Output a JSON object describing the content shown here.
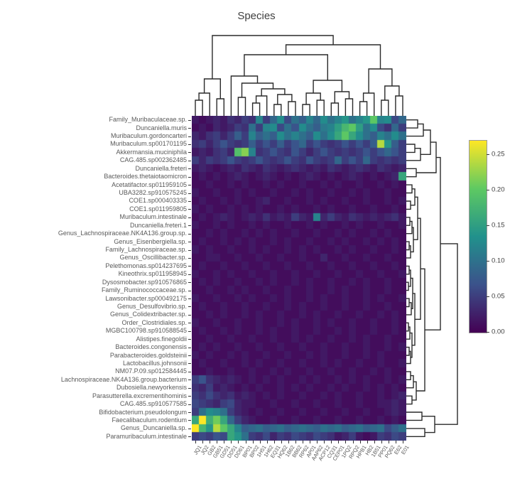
{
  "title": "Species",
  "chart_data": {
    "type": "heatmap",
    "title": "Species",
    "xlabel": "",
    "ylabel": "",
    "colormap": "viridis",
    "vmin": 0.0,
    "vmax": 0.27,
    "colorbar_ticks": [
      "0.25",
      "0.20",
      "0.15",
      "0.10",
      "0.05",
      "0.00"
    ],
    "colorbar_tick_values": [
      0.25,
      0.2,
      0.15,
      0.1,
      0.05,
      0.0
    ],
    "row_dendrogram": true,
    "column_dendrogram": true,
    "rows": [
      "Family_Muribaculaceae.sp.",
      "Duncaniella.muris",
      "Muribaculum.gordoncarteri",
      "Muribaculum.sp001701195",
      "Akkermansia.muciniphila",
      "CAG.485.sp002362485",
      "Duncaniella.freteri",
      "Bacteroides.thetaiotaomicron",
      "Acetatifactor.sp011959105",
      "UBA3282.sp910575245",
      "COE1.sp000403335",
      "COE1.sp011959805",
      "Muribaculum.intestinale",
      "Duncaniella.freteri.1",
      "Genus_Lachnospiraceae.NK4A136.group.sp.",
      "Genus_Eisenbergiella.sp.",
      "Family_Lachnospiraceae.sp.",
      "Genus_Oscillibacter.sp.",
      "Pelethomonas.sp014237695",
      "Kineothrix.sp011958945",
      "Dysosmobacter.sp910576865",
      "Family_Ruminococcaceae.sp.",
      "Lawsonibacter.sp000492175",
      "Genus_Desulfovibrio.sp.",
      "Genus_Colidextribacter.sp.",
      "Order_Clostridiales.sp.",
      "MGBC100798.sp910588545",
      "Alistipes.finegoldii",
      "Bacteroides.congonensis",
      "Parabacteroides.goldsteinii",
      "Lactobacillus.johnsonii",
      "NM07.P.09.sp012584445",
      "Lachnospiraceae.NK4A136.group.bacterium",
      "Dubosiella.newyorkensis",
      "Parasutterella.excrementihominis",
      "CAG.485.sp910577585",
      "Bifidobacterium.pseudolongum",
      "Faecalibaculum.rodentium",
      "Genus_Duncaniella.sp.",
      "Paramuribaculum.intestinale"
    ],
    "columns": [
      "JQ1",
      "JQ2",
      "GB2",
      "GB51",
      "GD51",
      "DD51",
      "DD61",
      "BP01",
      "BP02",
      "1H51",
      "1H62",
      "EQ31",
      "HQ62",
      "1B62",
      "BB62",
      "RP62",
      "AP01",
      "AAP62",
      "ACP12",
      "CQ31",
      "CEP01",
      "1PQ2",
      "RPQ2",
      "HPB1",
      "HB2",
      "1B51",
      "PP01",
      "PQ62",
      "E62",
      "E01"
    ],
    "matrix": [
      [
        0.02,
        0.01,
        0.02,
        0.03,
        0.02,
        0.04,
        0.03,
        0.05,
        0.04,
        0.12,
        0.05,
        0.09,
        0.13,
        0.06,
        0.1,
        0.08,
        0.12,
        0.09,
        0.13,
        0.1,
        0.12,
        0.14,
        0.1,
        0.12,
        0.14,
        0.2,
        0.12,
        0.13,
        0.06,
        0.09
      ],
      [
        0.01,
        0.02,
        0.01,
        0.03,
        0.02,
        0.03,
        0.05,
        0.04,
        0.1,
        0.05,
        0.12,
        0.13,
        0.06,
        0.1,
        0.07,
        0.13,
        0.1,
        0.08,
        0.11,
        0.12,
        0.15,
        0.18,
        0.2,
        0.15,
        0.1,
        0.13,
        0.06,
        0.04,
        0.09,
        0.05
      ],
      [
        0.03,
        0.02,
        0.04,
        0.05,
        0.03,
        0.05,
        0.08,
        0.05,
        0.12,
        0.08,
        0.1,
        0.08,
        0.13,
        0.1,
        0.12,
        0.1,
        0.08,
        0.13,
        0.1,
        0.13,
        0.16,
        0.2,
        0.16,
        0.13,
        0.1,
        0.08,
        0.12,
        0.1,
        0.13,
        0.1
      ],
      [
        0.04,
        0.05,
        0.03,
        0.05,
        0.07,
        0.05,
        0.04,
        0.05,
        0.08,
        0.05,
        0.07,
        0.05,
        0.08,
        0.05,
        0.07,
        0.09,
        0.05,
        0.07,
        0.05,
        0.04,
        0.05,
        0.07,
        0.05,
        0.07,
        0.05,
        0.08,
        0.24,
        0.14,
        0.08,
        0.05
      ],
      [
        0.02,
        0.03,
        0.02,
        0.04,
        0.05,
        0.03,
        0.19,
        0.22,
        0.12,
        0.04,
        0.05,
        0.07,
        0.05,
        0.04,
        0.07,
        0.05,
        0.03,
        0.05,
        0.07,
        0.05,
        0.04,
        0.05,
        0.04,
        0.05,
        0.07,
        0.05,
        0.07,
        0.09,
        0.07,
        0.05
      ],
      [
        0.05,
        0.03,
        0.05,
        0.04,
        0.05,
        0.07,
        0.05,
        0.04,
        0.05,
        0.07,
        0.05,
        0.04,
        0.05,
        0.07,
        0.05,
        0.04,
        0.07,
        0.05,
        0.04,
        0.05,
        0.09,
        0.05,
        0.07,
        0.05,
        0.09,
        0.05,
        0.04,
        0.05,
        0.04,
        0.05
      ],
      [
        0.02,
        0.03,
        0.02,
        0.01,
        0.02,
        0.03,
        0.02,
        0.04,
        0.03,
        0.02,
        0.04,
        0.03,
        0.02,
        0.03,
        0.04,
        0.03,
        0.02,
        0.03,
        0.02,
        0.04,
        0.03,
        0.02,
        0.03,
        0.04,
        0.03,
        0.02,
        0.04,
        0.03,
        0.02,
        0.03
      ],
      [
        0.01,
        0.02,
        0.01,
        0.02,
        0.01,
        0.02,
        0.03,
        0.02,
        0.01,
        0.02,
        0.03,
        0.02,
        0.01,
        0.02,
        0.01,
        0.02,
        0.03,
        0.02,
        0.01,
        0.02,
        0.01,
        0.02,
        0.03,
        0.02,
        0.01,
        0.02,
        0.01,
        0.02,
        0.03,
        0.16
      ],
      [
        0.01,
        0.01,
        0.02,
        0.01,
        0.01,
        0.02,
        0.01,
        0.02,
        0.01,
        0.01,
        0.02,
        0.01,
        0.02,
        0.01,
        0.01,
        0.02,
        0.01,
        0.01,
        0.02,
        0.01,
        0.02,
        0.01,
        0.01,
        0.02,
        0.01,
        0.01,
        0.02,
        0.01,
        0.02,
        0.01
      ],
      [
        0.02,
        0.01,
        0.01,
        0.02,
        0.01,
        0.01,
        0.02,
        0.01,
        0.02,
        0.01,
        0.01,
        0.02,
        0.01,
        0.01,
        0.02,
        0.01,
        0.02,
        0.01,
        0.01,
        0.02,
        0.01,
        0.01,
        0.02,
        0.01,
        0.02,
        0.01,
        0.01,
        0.02,
        0.01,
        0.01
      ],
      [
        0.01,
        0.02,
        0.01,
        0.01,
        0.02,
        0.01,
        0.02,
        0.01,
        0.01,
        0.02,
        0.03,
        0.01,
        0.01,
        0.02,
        0.01,
        0.01,
        0.02,
        0.01,
        0.02,
        0.01,
        0.01,
        0.02,
        0.01,
        0.01,
        0.02,
        0.01,
        0.01,
        0.02,
        0.01,
        0.02
      ],
      [
        0.02,
        0.01,
        0.02,
        0.01,
        0.01,
        0.02,
        0.01,
        0.02,
        0.01,
        0.02,
        0.01,
        0.01,
        0.02,
        0.01,
        0.02,
        0.01,
        0.01,
        0.02,
        0.01,
        0.02,
        0.01,
        0.01,
        0.02,
        0.01,
        0.01,
        0.02,
        0.01,
        0.01,
        0.02,
        0.01
      ],
      [
        0.01,
        0.02,
        0.01,
        0.02,
        0.03,
        0.02,
        0.01,
        0.02,
        0.03,
        0.02,
        0.04,
        0.02,
        0.03,
        0.02,
        0.05,
        0.03,
        0.02,
        0.12,
        0.03,
        0.05,
        0.03,
        0.02,
        0.04,
        0.03,
        0.02,
        0.03,
        0.02,
        0.03,
        0.04,
        0.02
      ],
      [
        0.02,
        0.01,
        0.01,
        0.02,
        0.01,
        0.02,
        0.01,
        0.01,
        0.02,
        0.01,
        0.02,
        0.01,
        0.01,
        0.02,
        0.01,
        0.01,
        0.02,
        0.01,
        0.02,
        0.01,
        0.01,
        0.02,
        0.01,
        0.02,
        0.01,
        0.01,
        0.02,
        0.01,
        0.01,
        0.02
      ],
      [
        0.01,
        0.01,
        0.02,
        0.01,
        0.02,
        0.01,
        0.01,
        0.02,
        0.01,
        0.02,
        0.01,
        0.02,
        0.01,
        0.01,
        0.02,
        0.01,
        0.01,
        0.02,
        0.01,
        0.01,
        0.02,
        0.01,
        0.02,
        0.01,
        0.01,
        0.02,
        0.01,
        0.02,
        0.01,
        0.01
      ],
      [
        0.01,
        0.02,
        0.01,
        0.01,
        0.02,
        0.01,
        0.02,
        0.01,
        0.02,
        0.01,
        0.01,
        0.02,
        0.01,
        0.02,
        0.01,
        0.01,
        0.02,
        0.01,
        0.01,
        0.02,
        0.01,
        0.02,
        0.01,
        0.01,
        0.02,
        0.01,
        0.02,
        0.01,
        0.02,
        0.01
      ],
      [
        0.02,
        0.01,
        0.02,
        0.01,
        0.01,
        0.02,
        0.01,
        0.01,
        0.02,
        0.01,
        0.02,
        0.01,
        0.01,
        0.02,
        0.01,
        0.02,
        0.01,
        0.02,
        0.01,
        0.01,
        0.02,
        0.01,
        0.02,
        0.01,
        0.01,
        0.02,
        0.01,
        0.01,
        0.02,
        0.01
      ],
      [
        0.01,
        0.01,
        0.02,
        0.02,
        0.01,
        0.01,
        0.02,
        0.01,
        0.01,
        0.02,
        0.01,
        0.01,
        0.02,
        0.01,
        0.01,
        0.02,
        0.01,
        0.01,
        0.03,
        0.01,
        0.01,
        0.02,
        0.01,
        0.01,
        0.02,
        0.01,
        0.01,
        0.02,
        0.01,
        0.01
      ],
      [
        0.01,
        0.02,
        0.01,
        0.01,
        0.02,
        0.01,
        0.01,
        0.02,
        0.01,
        0.01,
        0.02,
        0.01,
        0.01,
        0.02,
        0.01,
        0.01,
        0.02,
        0.01,
        0.01,
        0.02,
        0.01,
        0.01,
        0.02,
        0.01,
        0.01,
        0.02,
        0.01,
        0.01,
        0.02,
        0.01
      ],
      [
        0.02,
        0.01,
        0.01,
        0.02,
        0.01,
        0.02,
        0.01,
        0.01,
        0.02,
        0.01,
        0.01,
        0.02,
        0.01,
        0.01,
        0.02,
        0.01,
        0.01,
        0.02,
        0.01,
        0.01,
        0.02,
        0.01,
        0.01,
        0.02,
        0.01,
        0.01,
        0.02,
        0.01,
        0.01,
        0.02
      ],
      [
        0.01,
        0.02,
        0.01,
        0.02,
        0.01,
        0.01,
        0.02,
        0.01,
        0.01,
        0.02,
        0.01,
        0.02,
        0.01,
        0.01,
        0.02,
        0.01,
        0.02,
        0.01,
        0.01,
        0.02,
        0.01,
        0.01,
        0.02,
        0.01,
        0.02,
        0.01,
        0.01,
        0.02,
        0.01,
        0.01
      ],
      [
        0.01,
        0.01,
        0.02,
        0.01,
        0.01,
        0.02,
        0.01,
        0.02,
        0.01,
        0.01,
        0.02,
        0.01,
        0.01,
        0.02,
        0.01,
        0.01,
        0.02,
        0.01,
        0.01,
        0.02,
        0.01,
        0.02,
        0.01,
        0.01,
        0.02,
        0.01,
        0.01,
        0.02,
        0.01,
        0.01
      ],
      [
        0.02,
        0.01,
        0.01,
        0.02,
        0.01,
        0.01,
        0.02,
        0.01,
        0.02,
        0.01,
        0.01,
        0.02,
        0.01,
        0.02,
        0.01,
        0.01,
        0.02,
        0.01,
        0.02,
        0.01,
        0.01,
        0.02,
        0.01,
        0.01,
        0.02,
        0.01,
        0.02,
        0.01,
        0.01,
        0.02
      ],
      [
        0.01,
        0.02,
        0.01,
        0.01,
        0.02,
        0.01,
        0.01,
        0.02,
        0.01,
        0.01,
        0.02,
        0.01,
        0.01,
        0.02,
        0.01,
        0.02,
        0.01,
        0.01,
        0.02,
        0.01,
        0.01,
        0.02,
        0.01,
        0.01,
        0.02,
        0.01,
        0.01,
        0.02,
        0.01,
        0.01
      ],
      [
        0.01,
        0.01,
        0.02,
        0.01,
        0.02,
        0.01,
        0.01,
        0.02,
        0.01,
        0.02,
        0.01,
        0.01,
        0.02,
        0.01,
        0.01,
        0.02,
        0.01,
        0.02,
        0.01,
        0.01,
        0.02,
        0.01,
        0.01,
        0.02,
        0.01,
        0.01,
        0.02,
        0.01,
        0.02,
        0.01
      ],
      [
        0.02,
        0.01,
        0.01,
        0.02,
        0.01,
        0.01,
        0.02,
        0.01,
        0.01,
        0.02,
        0.01,
        0.01,
        0.02,
        0.01,
        0.02,
        0.01,
        0.01,
        0.02,
        0.01,
        0.02,
        0.01,
        0.01,
        0.02,
        0.01,
        0.01,
        0.02,
        0.01,
        0.01,
        0.02,
        0.01
      ],
      [
        0.01,
        0.02,
        0.01,
        0.01,
        0.02,
        0.01,
        0.02,
        0.01,
        0.01,
        0.02,
        0.01,
        0.02,
        0.01,
        0.01,
        0.02,
        0.01,
        0.01,
        0.02,
        0.01,
        0.01,
        0.02,
        0.01,
        0.02,
        0.01,
        0.01,
        0.02,
        0.01,
        0.01,
        0.02,
        0.01
      ],
      [
        0.01,
        0.01,
        0.02,
        0.01,
        0.01,
        0.02,
        0.01,
        0.01,
        0.02,
        0.01,
        0.01,
        0.02,
        0.01,
        0.01,
        0.02,
        0.01,
        0.02,
        0.01,
        0.01,
        0.02,
        0.01,
        0.01,
        0.02,
        0.01,
        0.02,
        0.01,
        0.01,
        0.02,
        0.01,
        0.01
      ],
      [
        0.01,
        0.02,
        0.01,
        0.02,
        0.01,
        0.01,
        0.02,
        0.01,
        0.01,
        0.02,
        0.01,
        0.01,
        0.02,
        0.01,
        0.01,
        0.02,
        0.01,
        0.01,
        0.02,
        0.01,
        0.01,
        0.02,
        0.01,
        0.01,
        0.02,
        0.01,
        0.01,
        0.02,
        0.01,
        0.02
      ],
      [
        0.02,
        0.01,
        0.02,
        0.01,
        0.01,
        0.02,
        0.01,
        0.02,
        0.01,
        0.01,
        0.02,
        0.01,
        0.01,
        0.02,
        0.01,
        0.01,
        0.02,
        0.01,
        0.02,
        0.01,
        0.01,
        0.02,
        0.01,
        0.01,
        0.02,
        0.01,
        0.02,
        0.01,
        0.01,
        0.01
      ],
      [
        0.01,
        0.02,
        0.01,
        0.01,
        0.02,
        0.01,
        0.01,
        0.02,
        0.01,
        0.02,
        0.01,
        0.01,
        0.02,
        0.01,
        0.01,
        0.02,
        0.01,
        0.01,
        0.02,
        0.01,
        0.02,
        0.01,
        0.01,
        0.02,
        0.01,
        0.01,
        0.02,
        0.01,
        0.01,
        0.02
      ],
      [
        0.01,
        0.01,
        0.02,
        0.01,
        0.01,
        0.02,
        0.01,
        0.01,
        0.02,
        0.01,
        0.01,
        0.02,
        0.01,
        0.02,
        0.01,
        0.01,
        0.02,
        0.01,
        0.01,
        0.02,
        0.01,
        0.01,
        0.02,
        0.01,
        0.01,
        0.02,
        0.01,
        0.02,
        0.01,
        0.01
      ],
      [
        0.05,
        0.07,
        0.04,
        0.03,
        0.02,
        0.03,
        0.02,
        0.01,
        0.02,
        0.01,
        0.02,
        0.01,
        0.02,
        0.01,
        0.01,
        0.02,
        0.01,
        0.02,
        0.01,
        0.01,
        0.02,
        0.01,
        0.02,
        0.01,
        0.02,
        0.01,
        0.01,
        0.02,
        0.01,
        0.02
      ],
      [
        0.04,
        0.03,
        0.05,
        0.02,
        0.03,
        0.02,
        0.01,
        0.02,
        0.01,
        0.02,
        0.01,
        0.01,
        0.02,
        0.01,
        0.02,
        0.01,
        0.02,
        0.01,
        0.01,
        0.02,
        0.01,
        0.02,
        0.01,
        0.01,
        0.02,
        0.01,
        0.02,
        0.01,
        0.02,
        0.01
      ],
      [
        0.05,
        0.04,
        0.06,
        0.04,
        0.03,
        0.04,
        0.02,
        0.03,
        0.02,
        0.01,
        0.02,
        0.01,
        0.02,
        0.01,
        0.01,
        0.02,
        0.01,
        0.01,
        0.02,
        0.01,
        0.02,
        0.01,
        0.01,
        0.02,
        0.01,
        0.01,
        0.02,
        0.01,
        0.02,
        0.03
      ],
      [
        0.06,
        0.05,
        0.04,
        0.03,
        0.05,
        0.06,
        0.03,
        0.02,
        0.02,
        0.01,
        0.01,
        0.02,
        0.01,
        0.01,
        0.02,
        0.01,
        0.01,
        0.02,
        0.01,
        0.01,
        0.02,
        0.01,
        0.01,
        0.02,
        0.01,
        0.01,
        0.02,
        0.02,
        0.03,
        0.02
      ],
      [
        0.05,
        0.1,
        0.13,
        0.12,
        0.1,
        0.05,
        0.03,
        0.02,
        0.01,
        0.02,
        0.01,
        0.01,
        0.02,
        0.01,
        0.01,
        0.02,
        0.01,
        0.01,
        0.02,
        0.01,
        0.01,
        0.02,
        0.01,
        0.01,
        0.02,
        0.01,
        0.01,
        0.02,
        0.03,
        0.02
      ],
      [
        0.16,
        0.27,
        0.17,
        0.21,
        0.16,
        0.09,
        0.05,
        0.03,
        0.02,
        0.01,
        0.01,
        0.02,
        0.01,
        0.01,
        0.02,
        0.01,
        0.01,
        0.02,
        0.01,
        0.01,
        0.02,
        0.01,
        0.01,
        0.02,
        0.01,
        0.01,
        0.02,
        0.01,
        0.02,
        0.01
      ],
      [
        0.27,
        0.18,
        0.14,
        0.24,
        0.2,
        0.16,
        0.12,
        0.08,
        0.09,
        0.1,
        0.08,
        0.09,
        0.1,
        0.08,
        0.09,
        0.1,
        0.09,
        0.08,
        0.1,
        0.09,
        0.1,
        0.08,
        0.09,
        0.1,
        0.08,
        0.09,
        0.1,
        0.06,
        0.08,
        0.1
      ],
      [
        0.05,
        0.06,
        0.05,
        0.07,
        0.06,
        0.16,
        0.14,
        0.1,
        0.05,
        0.04,
        0.06,
        0.03,
        0.05,
        0.04,
        0.06,
        0.05,
        0.04,
        0.06,
        0.05,
        0.04,
        0.02,
        0.03,
        0.05,
        0.02,
        0.01,
        0.02,
        0.05,
        0.04,
        0.06,
        0.05
      ]
    ]
  }
}
